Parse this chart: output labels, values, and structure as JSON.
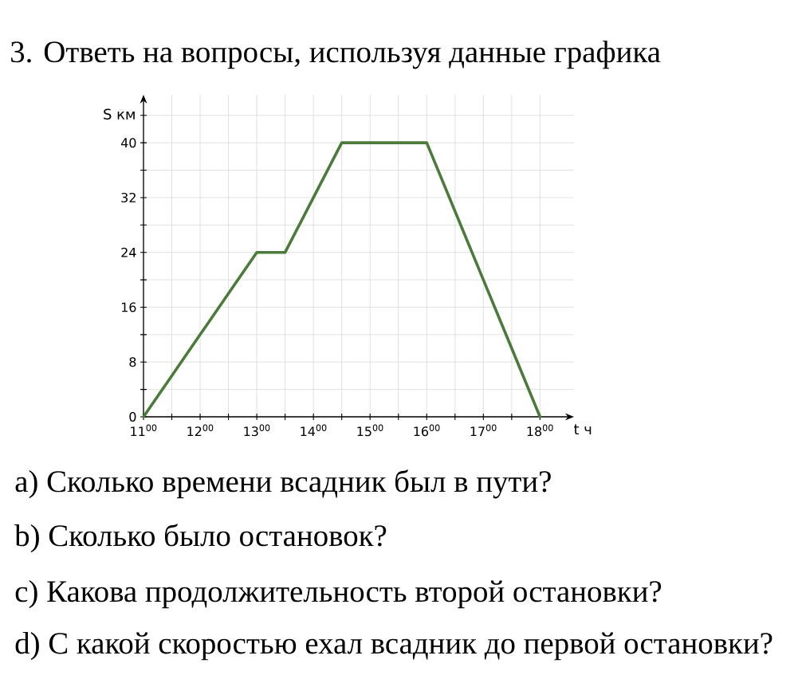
{
  "chart_data": {
    "type": "line",
    "title": "3. Ответь на вопросы, используя данные графика",
    "xlabel": "t ч",
    "ylabel": "S км",
    "categories": [
      "11$^{00}$",
      null,
      "12$^{00}$",
      null,
      "13$^{00}$",
      null,
      "14$^{00}$",
      null,
      "15$^{00}$",
      null,
      "16$^{00}$",
      null,
      "17$^{00}$",
      null,
      "18$^{00}$"
    ],
    "values": [
      0,
      6,
      12,
      18,
      24,
      24,
      32,
      40,
      40,
      40,
      40,
      30,
      20,
      10,
      0
    ],
    "color": "#4b7b3b",
    "line_style": "solid",
    "ylim": [
      0,
      47
    ],
    "yticks": [
      0,
      {
        "value": 4,
        "label": null
      },
      8,
      {
        "value": 12,
        "label": null
      },
      16,
      {
        "value": 20,
        "label": null
      },
      24,
      {
        "value": 28,
        "label": null
      },
      32,
      {
        "value": 36,
        "label": null
      },
      40,
      {
        "value": 44,
        "label": null
      }
    ],
    "grid": true,
    "annotations": [
      "a) Сколько времени всадник был в пути?",
      "b) Сколько было остановок?",
      "c) Какова продолжительность второй остановки?",
      "d) С какой скоростью ехал всадник до первой остановки?"
    ]
  }
}
